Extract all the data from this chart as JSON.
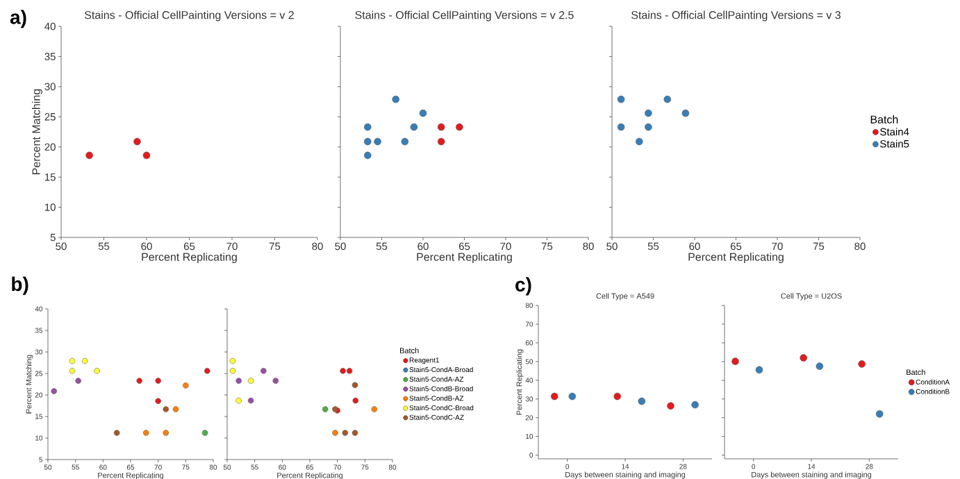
{
  "chart_data": [
    {
      "type": "scatter",
      "title": "Stains - Official CellPainting Versions = v 2",
      "xlabel": "Percent Replicating",
      "ylabel": "Percent Matching",
      "xlim": [
        50,
        80
      ],
      "ylim": [
        5,
        40
      ],
      "xticks": [
        50,
        55,
        60,
        65,
        70,
        75,
        80
      ],
      "yticks": [
        5,
        10,
        15,
        20,
        25,
        30,
        35,
        40
      ],
      "marker": "circle",
      "annotations": [
        "a)"
      ],
      "series": [
        {
          "color": "#e41a1c",
          "x": [
            53.3,
            58.9,
            60.0
          ],
          "values": [
            18.6,
            20.9,
            18.6
          ]
        }
      ]
    },
    {
      "type": "scatter",
      "title": "Stains - Official CellPainting Versions = v 2.5",
      "xlabel": "Percent Replicating",
      "xlim": [
        50,
        80
      ],
      "ylim": [
        5,
        40
      ],
      "xticks": [
        50,
        55,
        60,
        65,
        70,
        75,
        80
      ],
      "yticks": [
        5,
        10,
        15,
        20,
        25,
        30,
        35,
        40
      ],
      "marker": "circle",
      "tick_labels": "x",
      "series": [
        {
          "color": "#e41a1c",
          "x": [
            62.2,
            64.4,
            62.2
          ],
          "values": [
            23.3,
            23.3,
            20.9
          ]
        },
        {
          "color": "#377eb8",
          "x": [
            53.3,
            53.3,
            54.5,
            53.3,
            56.7,
            60.0,
            58.9,
            57.8
          ],
          "values": [
            23.3,
            20.9,
            20.9,
            18.6,
            27.9,
            25.6,
            23.3,
            20.9
          ]
        }
      ]
    },
    {
      "type": "scatter",
      "title": "Stains - Official CellPainting Versions = v 3",
      "xlabel": "Percent Replicating",
      "xlim": [
        50,
        80
      ],
      "ylim": [
        5,
        40
      ],
      "xticks": [
        50,
        55,
        60,
        65,
        70,
        75,
        80
      ],
      "yticks": [
        5,
        10,
        15,
        20,
        25,
        30,
        35,
        40
      ],
      "marker": "circle",
      "tick_labels": "x",
      "legend": "right",
      "legend_title": "Batch",
      "series": [
        {
          "name": "Stain4",
          "color": "#e41a1c"
        },
        {
          "name": "Stain5",
          "color": "#377eb8",
          "x": [
            51.1,
            56.7,
            54.4,
            58.9,
            51.1,
            54.4,
            53.3
          ],
          "values": [
            27.9,
            27.9,
            25.6,
            25.6,
            23.3,
            23.3,
            20.9
          ]
        }
      ]
    },
    {
      "type": "scatter",
      "xlabel": "Percent Replicating",
      "ylabel": "Percent Matching",
      "xlim": [
        50,
        80
      ],
      "ylim": [
        5,
        40
      ],
      "xticks": [
        50,
        55,
        60,
        65,
        70,
        75,
        80
      ],
      "yticks": [
        5,
        10,
        15,
        20,
        25,
        30,
        35,
        40
      ],
      "marker": "circle",
      "annotations": [
        "b)"
      ],
      "series": [
        {
          "color": "#e41a1c",
          "x": [
            66.6,
            70.0,
            70.0,
            78.9
          ],
          "values": [
            23.3,
            23.3,
            18.6,
            25.6
          ]
        },
        {
          "color": "#4daf4a",
          "x": [
            78.5
          ],
          "values": [
            11.2
          ]
        },
        {
          "color": "#984ea3",
          "x": [
            55.5,
            51.1
          ],
          "values": [
            23.3,
            20.9
          ]
        },
        {
          "color": "#ff7f00",
          "x": [
            67.8,
            71.4,
            73.2,
            75.0
          ],
          "values": [
            11.2,
            11.2,
            16.7,
            22.2
          ]
        },
        {
          "color": "#ffff33",
          "x": [
            54.4,
            56.7,
            54.4,
            58.9
          ],
          "values": [
            27.9,
            27.9,
            25.6,
            25.6
          ]
        },
        {
          "color": "#a65628",
          "x": [
            62.5,
            71.4
          ],
          "values": [
            11.2,
            16.7
          ]
        }
      ]
    },
    {
      "type": "scatter",
      "xlabel": "Percent Replicating",
      "xlim": [
        50,
        80
      ],
      "ylim": [
        5,
        40
      ],
      "xticks": [
        50,
        55,
        60,
        65,
        70,
        75,
        80
      ],
      "yticks": [
        5,
        10,
        15,
        20,
        25,
        30,
        35,
        40
      ],
      "marker": "circle",
      "tick_labels": "x",
      "legend": "right",
      "legend_title": "Batch",
      "series": [
        {
          "name": "Reagent1",
          "color": "#e41a1c",
          "x": [
            71.0,
            72.2,
            73.3,
            70.0
          ],
          "values": [
            25.6,
            25.6,
            18.7,
            16.4
          ]
        },
        {
          "name": "Stain5-CondA-Broad",
          "color": "#377eb8"
        },
        {
          "name": "Stain5-CondA-AZ",
          "color": "#4daf4a",
          "x": [
            67.8
          ],
          "values": [
            16.7
          ]
        },
        {
          "name": "Stain5-CondB-Broad",
          "color": "#984ea3",
          "x": [
            52.1,
            56.6,
            58.8,
            54.3
          ],
          "values": [
            23.3,
            25.6,
            23.3,
            18.7
          ]
        },
        {
          "name": "Stain5-CondB-AZ",
          "color": "#ff7f00",
          "x": [
            76.7,
            69.6
          ],
          "values": [
            16.7,
            11.2
          ]
        },
        {
          "name": "Stain5-CondC-Broad",
          "color": "#ffff33",
          "x": [
            51.0,
            51.0,
            54.3,
            52.1
          ],
          "values": [
            27.9,
            25.6,
            23.3,
            18.7
          ]
        },
        {
          "name": "Stain5-CondC-AZ",
          "color": "#a65628",
          "x": [
            73.2,
            69.6,
            71.4,
            73.2
          ],
          "values": [
            22.3,
            16.7,
            11.2,
            11.2
          ]
        }
      ]
    },
    {
      "type": "scatter",
      "title": "Cell Type = A549",
      "xlabel": "Days between staining and imaging",
      "ylabel": "Percent Replicating",
      "xlim": [
        -7,
        35
      ],
      "ylim": [
        -2,
        80
      ],
      "xticks": [
        0,
        14,
        28
      ],
      "yticks": [
        0,
        10,
        20,
        30,
        40,
        50,
        60,
        70,
        80
      ],
      "marker": "circle",
      "annotations": [
        "c)"
      ],
      "series": [
        {
          "color": "#e41a1c",
          "x": [
            -3.1,
            12.1,
            25.0
          ],
          "values": [
            31.4,
            31.4,
            26.3
          ]
        },
        {
          "color": "#377eb8",
          "x": [
            1.2,
            18.0,
            30.9
          ],
          "values": [
            31.4,
            28.8,
            26.9
          ]
        }
      ]
    },
    {
      "type": "scatter",
      "title": "Cell Type = U2OS",
      "xlabel": "Days between staining and imaging",
      "xlim": [
        -7,
        35
      ],
      "ylim": [
        -2,
        80
      ],
      "xticks": [
        0,
        14,
        28
      ],
      "yticks": [
        0,
        10,
        20,
        30,
        40,
        50,
        60,
        70,
        80
      ],
      "marker": "circle",
      "tick_labels": "x",
      "legend": "right",
      "legend_title": "Batch",
      "series": [
        {
          "name": "ConditionA",
          "color": "#e41a1c",
          "x": [
            -4.4,
            12.1,
            26.2
          ],
          "values": [
            50.1,
            52.0,
            48.7
          ]
        },
        {
          "name": "ConditionB",
          "color": "#377eb8",
          "x": [
            1.4,
            16.0,
            30.5
          ],
          "values": [
            45.6,
            47.5,
            22.0
          ]
        }
      ]
    }
  ]
}
